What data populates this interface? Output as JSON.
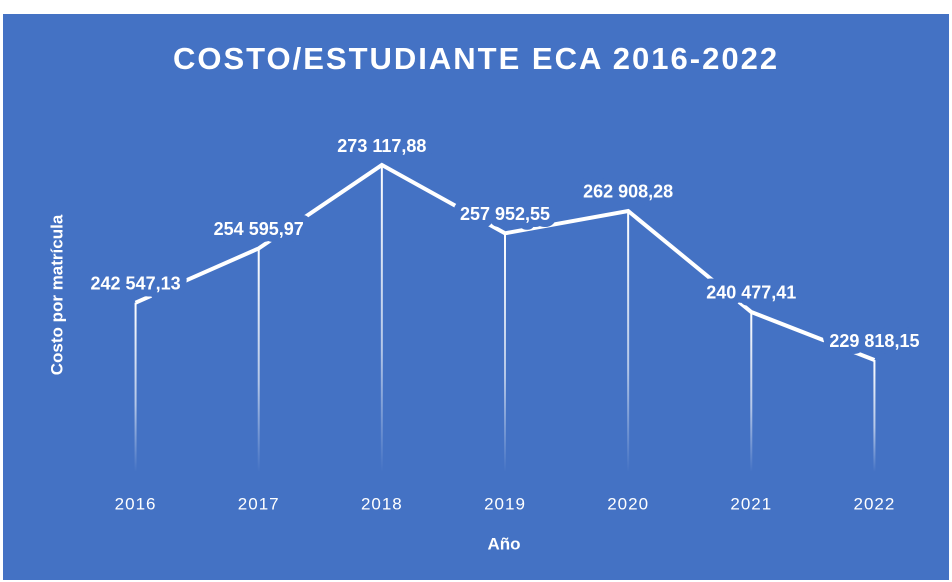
{
  "chart_data": {
    "type": "line",
    "title": "COSTO/ESTUDIANTE ECA 2016-2022",
    "x_label": "Año",
    "y_label": "Costo por matrícula",
    "categories": [
      "2016",
      "2017",
      "2018",
      "2019",
      "2020",
      "2021",
      "2022"
    ],
    "series": [
      {
        "name": "Costo por matrícula",
        "color": "#ffffff",
        "values": [
          242547.13,
          254595.97,
          273117.88,
          257952.55,
          262908.28,
          240477.41,
          229818.15
        ],
        "value_labels": [
          "242 547,13",
          "254 595,97",
          "273 117,88",
          "257 952,55",
          "262 908,28",
          "240 477,41",
          "229 818,15"
        ]
      }
    ],
    "background": "#4472c4",
    "drop_lines": true
  }
}
